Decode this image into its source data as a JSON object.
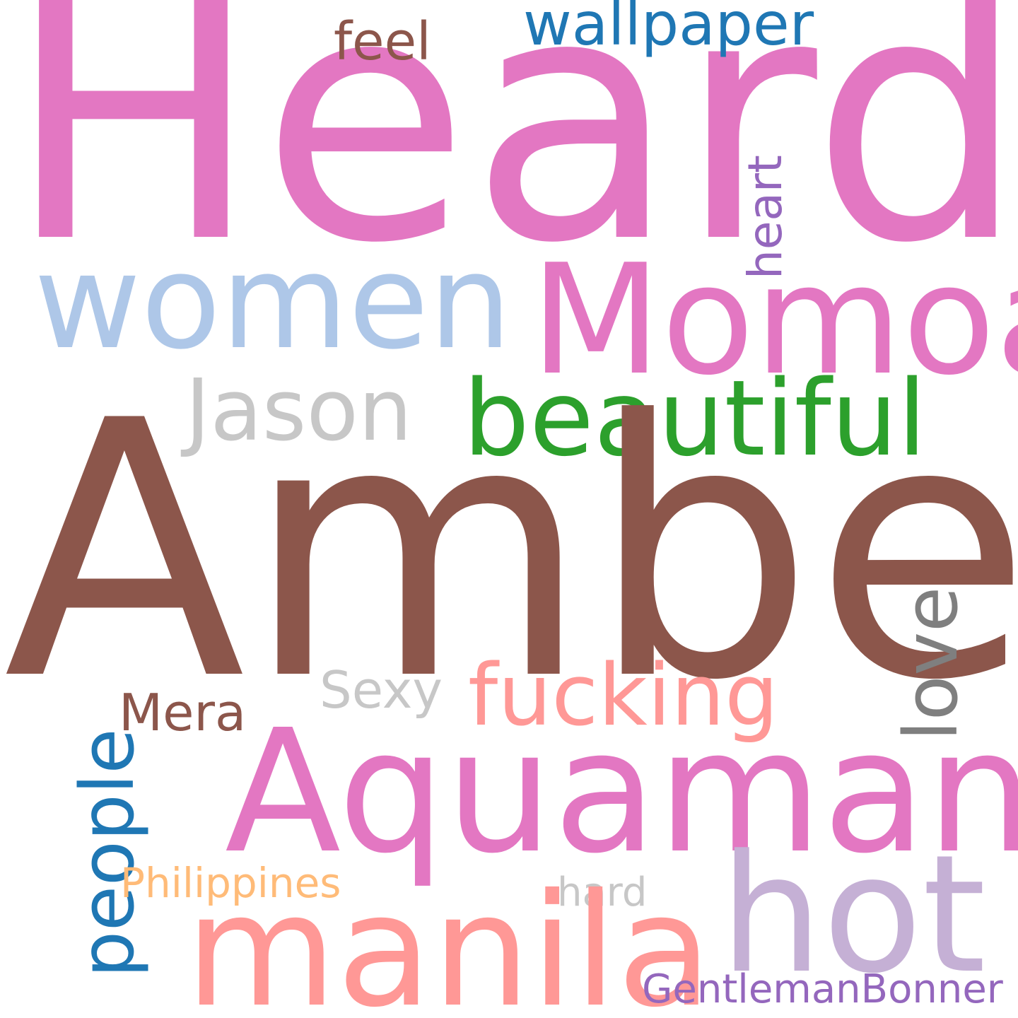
{
  "words": {
    "heard": {
      "text": "Heard",
      "color": "#e377c2"
    },
    "amber": {
      "text": "Amber",
      "color": "#8c564b"
    },
    "aquaman": {
      "text": "Aquaman",
      "color": "#e377c2"
    },
    "momoa": {
      "text": "Momoa",
      "color": "#e377c2"
    },
    "women": {
      "text": "women",
      "color": "#aec7e8"
    },
    "hot": {
      "text": "hot",
      "color": "#c5b0d5"
    },
    "manila": {
      "text": "manila",
      "color": "#ff9896"
    },
    "beautiful": {
      "text": "beautiful",
      "color": "#2ca02c"
    },
    "jason": {
      "text": "Jason",
      "color": "#c7c7c7"
    },
    "fucking": {
      "text": "fucking",
      "color": "#ff9896"
    },
    "love": {
      "text": "love",
      "color": "#7f7f7f"
    },
    "people": {
      "text": "people",
      "color": "#1f77b4"
    },
    "wallpaper": {
      "text": "wallpaper",
      "color": "#1f77b4"
    },
    "feel": {
      "text": "feel",
      "color": "#8c564b"
    },
    "heart": {
      "text": "heart",
      "color": "#9467bd"
    },
    "sexy": {
      "text": "Sexy",
      "color": "#c7c7c7"
    },
    "mera": {
      "text": "Mera",
      "color": "#8c564b"
    },
    "philippines": {
      "text": "Philippines",
      "color": "#ffbb78"
    },
    "hard": {
      "text": "hard",
      "color": "#c7c7c7"
    },
    "gentleman": {
      "text": "GentlemanBonner",
      "color": "#9467bd"
    }
  }
}
